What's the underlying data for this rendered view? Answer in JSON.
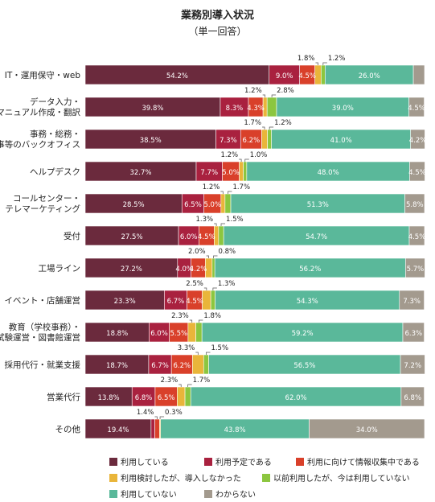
{
  "colors": [
    "#6b2a3d",
    "#a9213f",
    "#d9402a",
    "#e9b53a",
    "#8cc63f",
    "#5ab89a",
    "#a39a8e"
  ],
  "chart_data": {
    "type": "bar",
    "orientation": "horizontal",
    "stacked": true,
    "title": "業務別導入状況",
    "subtitle": "（単一回答）",
    "xlim": [
      0,
      100
    ],
    "categories": [
      "IT・運用保守・web",
      "データ入力・\nマニュアル作成・翻訳",
      "事務・総務・\n人事等のバックオフィス",
      "ヘルプデスク",
      "コールセンター・\nテレマーケティング",
      "受付",
      "工場ライン",
      "イベント・店舗運営",
      "教育（学校事務）・\n試験運営・図書館運営",
      "採用代行・就業支援",
      "営業代行",
      "その他"
    ],
    "series": [
      {
        "name": "利用している",
        "values": [
          54.2,
          39.8,
          38.5,
          32.7,
          28.5,
          27.5,
          27.2,
          23.3,
          18.8,
          18.7,
          13.8,
          19.4
        ]
      },
      {
        "name": "利用予定である",
        "values": [
          9.0,
          8.3,
          7.3,
          7.7,
          6.5,
          6.0,
          4.0,
          6.7,
          6.0,
          6.7,
          6.8,
          1.1
        ]
      },
      {
        "name": "利用に向けて情報収集中である",
        "values": [
          4.5,
          4.3,
          6.2,
          5.0,
          5.0,
          4.5,
          4.2,
          4.5,
          5.5,
          6.2,
          6.5,
          1.4
        ]
      },
      {
        "name": "利用検討したが、導入しなかった",
        "values": [
          1.8,
          1.2,
          1.7,
          1.2,
          1.2,
          1.3,
          2.0,
          2.5,
          2.3,
          3.3,
          2.3,
          0.3
        ]
      },
      {
        "name": "以前利用したが、今は利用していない",
        "values": [
          1.2,
          2.8,
          1.2,
          1.0,
          1.7,
          1.5,
          0.8,
          1.3,
          1.8,
          1.5,
          1.7,
          0.0
        ]
      },
      {
        "name": "利用していない",
        "values": [
          26.0,
          39.0,
          41.0,
          48.0,
          51.3,
          54.7,
          56.2,
          54.3,
          59.2,
          56.5,
          62.0,
          43.8
        ]
      },
      {
        "name": "わからない",
        "values": [
          3.3,
          4.5,
          4.2,
          4.5,
          5.8,
          4.5,
          5.7,
          7.3,
          6.3,
          7.2,
          6.8,
          34.0
        ]
      }
    ],
    "label_format": "{v}%",
    "legend": "bottom",
    "grid": false
  }
}
